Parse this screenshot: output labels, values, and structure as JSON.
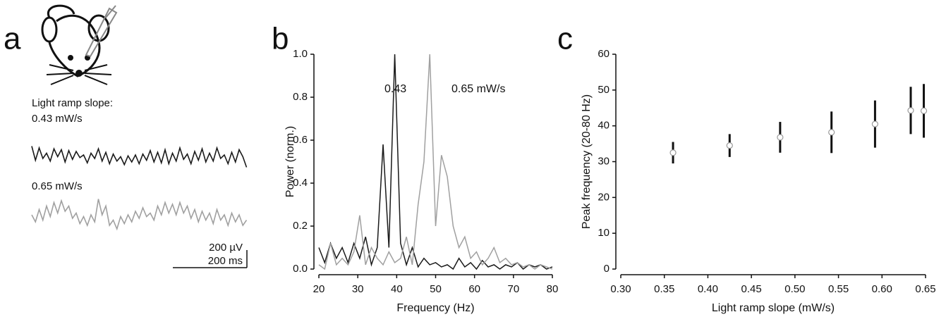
{
  "chart_data": [
    {
      "type": "trace",
      "panel": "a",
      "header": "Light ramp slope:",
      "x": [
        0,
        10,
        20,
        30,
        40,
        50,
        60,
        70,
        80,
        90,
        100,
        110,
        120,
        130,
        140,
        150,
        160,
        170,
        180,
        190,
        200,
        210,
        220,
        230,
        240,
        250,
        260,
        270,
        280,
        290,
        300,
        310,
        320,
        330,
        340,
        350,
        360,
        370,
        380,
        390,
        400,
        410,
        420,
        430,
        440,
        450,
        460,
        470,
        480,
        490,
        500,
        510,
        520,
        530,
        540,
        550,
        560,
        570,
        580
      ],
      "series": [
        {
          "name": "0.43 mW/s",
          "color": "#1a1a1a",
          "values": [
            60,
            -100,
            40,
            -80,
            -20,
            -110,
            30,
            -60,
            20,
            -120,
            10,
            -90,
            0,
            -70,
            -40,
            -130,
            -20,
            -80,
            30,
            -110,
            -10,
            -140,
            -30,
            -110,
            -60,
            -150,
            -50,
            -120,
            -40,
            -140,
            -30,
            -100,
            10,
            -120,
            -10,
            -130,
            20,
            -140,
            -20,
            -110,
            40,
            -90,
            -30,
            -140,
            0,
            -100,
            30,
            -120,
            -20,
            -110,
            40,
            -80,
            -40,
            -140,
            -10,
            -120,
            20,
            -60,
            -180
          ]
        },
        {
          "name": "0.65 mW/s",
          "color": "#a0a0a0",
          "values": [
            -40,
            -120,
            20,
            -100,
            60,
            -60,
            100,
            -20,
            120,
            0,
            60,
            -80,
            -20,
            -140,
            -60,
            -160,
            -40,
            -120,
            140,
            -40,
            60,
            -160,
            -100,
            -200,
            -60,
            -140,
            -40,
            -120,
            0,
            -80,
            40,
            -60,
            -20,
            -100,
            60,
            -40,
            100,
            -20,
            80,
            -40,
            100,
            -20,
            60,
            -80,
            20,
            -120,
            0,
            -100,
            -20,
            -140,
            20,
            -100,
            -40,
            -160,
            -20,
            -120,
            -40,
            -160,
            -100
          ]
        }
      ],
      "scalebar": {
        "y": {
          "value": 200,
          "label": "200 µV"
        },
        "x": {
          "value": 200,
          "label": "200 ms"
        }
      }
    },
    {
      "type": "line",
      "panel": "b",
      "xlabel": "Frequency (Hz)",
      "ylabel": "Power (norm.)",
      "x": [
        20,
        21.5,
        23,
        24.5,
        26,
        27.5,
        29,
        30.5,
        32,
        33.5,
        35,
        36.5,
        38,
        39.5,
        41,
        42.5,
        44,
        45.5,
        47,
        48.5,
        50,
        51.5,
        53,
        54.5,
        56,
        57.5,
        59,
        60.5,
        62,
        63.5,
        65,
        66.5,
        68,
        69.5,
        71,
        72.5,
        74,
        75.5,
        77,
        78.5,
        80
      ],
      "series": [
        {
          "name": "0.43",
          "color": "#1a1a1a",
          "values": [
            0.1,
            0.03,
            0.12,
            0.05,
            0.1,
            0.03,
            0.12,
            0.05,
            0.15,
            0.02,
            0.1,
            0.58,
            0.1,
            1.0,
            0.12,
            0.02,
            0.1,
            0.01,
            0.05,
            0.02,
            0.03,
            0.01,
            0.02,
            0.0,
            0.05,
            0.01,
            0.03,
            0.0,
            0.04,
            0.01,
            0.02,
            0.0,
            0.02,
            0.01,
            0.03,
            0.0,
            0.02,
            0.01,
            0.02,
            0.0,
            0.01
          ]
        },
        {
          "name": "0.65 mW/s",
          "color": "#a0a0a0",
          "values": [
            0.02,
            0.0,
            0.12,
            0.02,
            0.05,
            0.02,
            0.08,
            0.25,
            0.02,
            0.1,
            0.05,
            0.02,
            0.08,
            0.03,
            0.05,
            0.15,
            0.02,
            0.3,
            0.5,
            1.0,
            0.2,
            0.53,
            0.43,
            0.2,
            0.1,
            0.15,
            0.05,
            0.08,
            0.02,
            0.05,
            0.1,
            0.03,
            0.05,
            0.02,
            0.03,
            0.01,
            0.02,
            0.0,
            0.02,
            0.01,
            0.0
          ]
        }
      ],
      "xlim": [
        20,
        80
      ],
      "xticks": [
        20,
        30,
        40,
        50,
        60,
        70,
        80
      ],
      "ylim": [
        0,
        1.0
      ],
      "yticks": [
        {
          "value": 0,
          "label": "0.0"
        },
        {
          "value": 0.2,
          "label": "0.2"
        },
        {
          "value": 0.4,
          "label": "0.4"
        },
        {
          "value": 0.6,
          "label": "0.6"
        },
        {
          "value": 0.8,
          "label": "0.8"
        },
        {
          "value": 1.0,
          "label": "1.0"
        }
      ]
    },
    {
      "type": "scatter",
      "panel": "c",
      "xlabel": "Light ramp slope (mW/s)",
      "ylabel": "Peak frequency (20-80 Hz)",
      "x": [
        0.36,
        0.425,
        0.483,
        0.542,
        0.592,
        0.633,
        0.648
      ],
      "values": [
        32.5,
        34.5,
        36.8,
        38.2,
        40.5,
        44.3,
        44.2
      ],
      "errors": [
        3,
        3.2,
        4.3,
        5.8,
        6.6,
        6.6,
        7.5
      ],
      "color": "#111111",
      "xlim": [
        0.3,
        0.65
      ],
      "xticks": [
        {
          "value": 0.3,
          "label": "0.30"
        },
        {
          "value": 0.35,
          "label": "0.35"
        },
        {
          "value": 0.4,
          "label": "0.40"
        },
        {
          "value": 0.45,
          "label": "0.45"
        },
        {
          "value": 0.5,
          "label": "0.50"
        },
        {
          "value": 0.55,
          "label": "0.55"
        },
        {
          "value": 0.6,
          "label": "0.60"
        },
        {
          "value": 0.65,
          "label": "0.65"
        }
      ],
      "ylim": [
        0,
        60
      ],
      "yticks": [
        0,
        10,
        20,
        30,
        40,
        50,
        60
      ]
    }
  ]
}
